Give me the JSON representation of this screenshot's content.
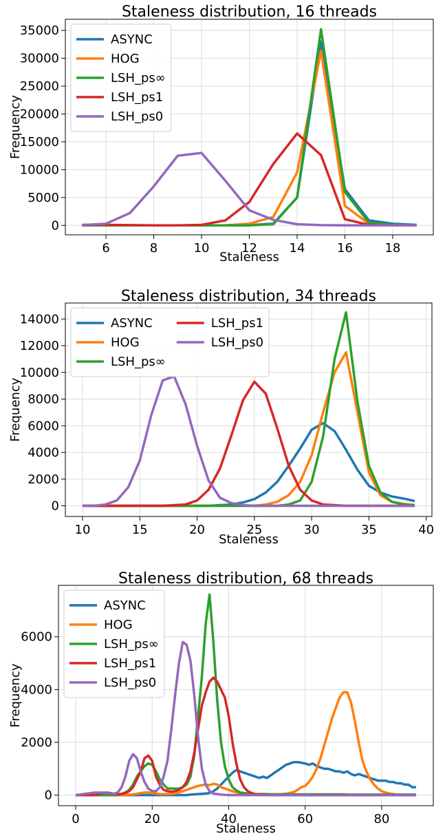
{
  "chart_data": [
    {
      "type": "line",
      "title": "Staleness distribution, 16 threads",
      "x_label": "Staleness",
      "y_label": "Frequency",
      "x": [
        5,
        6,
        7,
        8,
        9,
        10,
        11,
        12,
        13,
        14,
        15,
        16,
        17,
        18,
        19
      ],
      "series": [
        {
          "name": "ASYNC",
          "color": "#1f77b4",
          "values": [
            0,
            0,
            0,
            0,
            0,
            0,
            0,
            50,
            300,
            5000,
            33000,
            6500,
            900,
            300,
            100
          ]
        },
        {
          "name": "HOG",
          "color": "#ff7f0e",
          "values": [
            0,
            0,
            0,
            0,
            0,
            0,
            0,
            300,
            1500,
            9500,
            31300,
            3500,
            300,
            50,
            0
          ]
        },
        {
          "name": "LSH_ps∞",
          "color": "#2ca02c",
          "values": [
            0,
            0,
            0,
            0,
            0,
            0,
            0,
            0,
            200,
            5000,
            35200,
            6000,
            500,
            100,
            50
          ]
        },
        {
          "name": "LSH_ps1",
          "color": "#d62728",
          "values": [
            100,
            100,
            50,
            0,
            0,
            100,
            900,
            4200,
            11000,
            16500,
            12600,
            1100,
            100,
            0,
            0
          ]
        },
        {
          "name": "LSH_ps0",
          "color": "#9467bd",
          "values": [
            50,
            300,
            2200,
            7000,
            12500,
            13000,
            8000,
            2700,
            1000,
            200,
            50,
            0,
            0,
            0,
            0
          ]
        }
      ],
      "xlim": [
        4.3,
        19.7
      ],
      "ylim": [
        -1700,
        37000
      ],
      "xticks": [
        6,
        8,
        10,
        12,
        14,
        16,
        18
      ],
      "yticks": [
        0,
        5000,
        10000,
        15000,
        20000,
        25000,
        30000,
        35000
      ],
      "grid": true,
      "legend": "upper left",
      "legend_columns": 1
    },
    {
      "type": "line",
      "title": "Staleness distribution, 34 threads",
      "x_label": "Staleness",
      "y_label": "Frequency",
      "x": [
        10,
        11,
        12,
        13,
        14,
        15,
        16,
        17,
        18,
        19,
        20,
        21,
        22,
        23,
        24,
        25,
        26,
        27,
        28,
        29,
        30,
        31,
        32,
        33,
        34,
        35,
        36,
        37,
        38,
        39
      ],
      "series": [
        {
          "name": "ASYNC",
          "color": "#1f77b4",
          "values": [
            0,
            0,
            0,
            0,
            0,
            0,
            0,
            0,
            0,
            0,
            0,
            0,
            50,
            100,
            250,
            500,
            1000,
            1800,
            3000,
            4300,
            5700,
            6200,
            5600,
            4200,
            2700,
            1500,
            1000,
            700,
            550,
            350
          ]
        },
        {
          "name": "HOG",
          "color": "#ff7f0e",
          "values": [
            0,
            0,
            0,
            0,
            0,
            0,
            0,
            0,
            0,
            0,
            0,
            0,
            0,
            0,
            0,
            0,
            100,
            300,
            800,
            1800,
            3800,
            7000,
            10000,
            11500,
            7000,
            2500,
            800,
            300,
            150,
            50
          ]
        },
        {
          "name": "LSH_ps∞",
          "color": "#2ca02c",
          "values": [
            0,
            0,
            0,
            0,
            0,
            0,
            0,
            0,
            0,
            0,
            0,
            0,
            0,
            0,
            0,
            0,
            0,
            0,
            100,
            400,
            1800,
            5200,
            11000,
            14500,
            7800,
            3000,
            1000,
            300,
            100,
            50
          ]
        },
        {
          "name": "LSH_ps1",
          "color": "#d62728",
          "values": [
            0,
            0,
            0,
            0,
            0,
            0,
            0,
            0,
            50,
            100,
            400,
            1200,
            2800,
            5300,
            7900,
            9300,
            8400,
            5800,
            3000,
            1200,
            400,
            100,
            50,
            0,
            0,
            0,
            0,
            0,
            0,
            0
          ]
        },
        {
          "name": "LSH_ps0",
          "color": "#9467bd",
          "values": [
            0,
            0,
            100,
            400,
            1400,
            3400,
            6800,
            9400,
            9700,
            7600,
            4500,
            1900,
            600,
            200,
            50,
            0,
            0,
            0,
            0,
            0,
            0,
            0,
            0,
            0,
            0,
            0,
            0,
            0,
            0,
            0
          ]
        }
      ],
      "xlim": [
        8.5,
        40.5
      ],
      "ylim": [
        -800,
        15200
      ],
      "xticks": [
        10,
        15,
        20,
        25,
        30,
        35,
        40
      ],
      "yticks": [
        0,
        2000,
        4000,
        6000,
        8000,
        10000,
        12000,
        14000
      ],
      "grid": true,
      "legend": "upper left",
      "legend_columns": 2
    },
    {
      "type": "line",
      "title": "Staleness distribution, 68 threads",
      "x_label": "Staleness",
      "y_label": "Frequency",
      "x": [
        0,
        1,
        2,
        3,
        4,
        5,
        6,
        7,
        8,
        9,
        10,
        11,
        12,
        13,
        14,
        15,
        16,
        17,
        18,
        19,
        20,
        21,
        22,
        23,
        24,
        25,
        26,
        27,
        28,
        29,
        30,
        31,
        32,
        33,
        34,
        35,
        36,
        37,
        38,
        39,
        40,
        41,
        42,
        43,
        44,
        45,
        46,
        47,
        48,
        49,
        50,
        51,
        52,
        53,
        54,
        55,
        56,
        57,
        58,
        59,
        60,
        61,
        62,
        63,
        64,
        65,
        66,
        67,
        68,
        69,
        70,
        71,
        72,
        73,
        74,
        75,
        76,
        77,
        78,
        79,
        80,
        81,
        82,
        83,
        84,
        85,
        86,
        87,
        88,
        89
      ],
      "series": [
        {
          "name": "ASYNC",
          "color": "#1f77b4",
          "values": [
            0,
            0,
            0,
            0,
            0,
            0,
            0,
            0,
            0,
            0,
            0,
            0,
            0,
            0,
            0,
            0,
            0,
            0,
            0,
            0,
            0,
            0,
            0,
            0,
            0,
            0,
            0,
            0,
            0,
            0,
            20,
            30,
            40,
            50,
            60,
            80,
            150,
            250,
            400,
            550,
            700,
            850,
            950,
            900,
            850,
            800,
            750,
            700,
            650,
            700,
            650,
            750,
            850,
            950,
            1050,
            1150,
            1200,
            1250,
            1250,
            1230,
            1200,
            1150,
            1200,
            1100,
            1050,
            1000,
            1000,
            950,
            900,
            900,
            850,
            900,
            800,
            750,
            800,
            750,
            700,
            650,
            600,
            550,
            550,
            550,
            500,
            500,
            450,
            450,
            400,
            400,
            300,
            300
          ]
        },
        {
          "name": "HOG",
          "color": "#ff7f0e",
          "values": [
            0,
            0,
            0,
            0,
            0,
            0,
            0,
            0,
            0,
            0,
            0,
            0,
            0,
            10,
            20,
            30,
            50,
            80,
            100,
            100,
            80,
            60,
            40,
            40,
            40,
            50,
            60,
            100,
            150,
            200,
            250,
            300,
            350,
            380,
            400,
            380,
            430,
            400,
            300,
            250,
            200,
            150,
            100,
            80,
            60,
            50,
            40,
            30,
            30,
            30,
            30,
            30,
            30,
            30,
            40,
            50,
            80,
            120,
            200,
            300,
            350,
            500,
            700,
            1000,
            1400,
            1900,
            2400,
            2900,
            3300,
            3700,
            3900,
            3900,
            3500,
            2800,
            2000,
            1300,
            900,
            600,
            400,
            250,
            150,
            100,
            60,
            40,
            20,
            10,
            0,
            0,
            0,
            0
          ]
        },
        {
          "name": "LSH_ps∞",
          "color": "#2ca02c",
          "values": [
            0,
            0,
            0,
            0,
            0,
            0,
            0,
            0,
            0,
            0,
            0,
            20,
            50,
            100,
            200,
            400,
            700,
            900,
            1100,
            1200,
            1150,
            900,
            600,
            400,
            250,
            250,
            250,
            250,
            300,
            400,
            700,
            1500,
            3000,
            4500,
            6500,
            7600,
            5800,
            3600,
            2000,
            1100,
            600,
            300,
            180,
            100,
            80,
            60,
            50,
            40,
            40,
            40,
            40,
            30,
            30,
            30,
            30,
            30,
            30,
            30,
            30,
            30,
            30,
            30,
            30,
            30,
            30,
            30,
            30,
            30,
            30,
            30,
            30,
            20,
            20,
            20,
            20,
            20,
            20,
            20,
            20,
            20,
            20,
            20,
            20,
            20,
            20,
            20,
            20,
            20,
            20,
            20
          ]
        },
        {
          "name": "LSH_ps1",
          "color": "#d62728",
          "values": [
            0,
            0,
            0,
            0,
            0,
            0,
            50,
            80,
            100,
            80,
            50,
            30,
            40,
            80,
            150,
            300,
            600,
            900,
            1400,
            1500,
            1300,
            700,
            400,
            200,
            150,
            130,
            150,
            200,
            300,
            500,
            900,
            1600,
            2500,
            3400,
            3900,
            4300,
            4450,
            4300,
            4000,
            3700,
            3000,
            2000,
            1200,
            600,
            300,
            150,
            80,
            40,
            30,
            20,
            0,
            0,
            0,
            0,
            0,
            0,
            0,
            0,
            0,
            0,
            0,
            0,
            0,
            0,
            0,
            0,
            0,
            0,
            0,
            0,
            0,
            0,
            0,
            0,
            0,
            0,
            0,
            0,
            0,
            0,
            0,
            0,
            0,
            0,
            0,
            0,
            0,
            0,
            0,
            0
          ]
        },
        {
          "name": "LSH_ps0",
          "color": "#9467bd",
          "values": [
            0,
            20,
            40,
            60,
            80,
            100,
            100,
            100,
            80,
            60,
            50,
            100,
            300,
            700,
            1300,
            1550,
            1400,
            900,
            500,
            250,
            150,
            150,
            300,
            700,
            1300,
            2500,
            3800,
            5000,
            5800,
            5700,
            5100,
            3800,
            2200,
            1000,
            400,
            150,
            60,
            40,
            20,
            10,
            0,
            0,
            0,
            0,
            0,
            0,
            0,
            0,
            0,
            0,
            0,
            0,
            0,
            0,
            0,
            0,
            0,
            0,
            0,
            0,
            0,
            0,
            0,
            0,
            0,
            0,
            0,
            0,
            0,
            0,
            0,
            0,
            0,
            0,
            0,
            0,
            0,
            0,
            0,
            0,
            0,
            0,
            0,
            0,
            0,
            0,
            0,
            0,
            0,
            0
          ]
        }
      ],
      "xlim": [
        -4.5,
        93.5
      ],
      "ylim": [
        -400,
        7950
      ],
      "xticks": [
        0,
        20,
        40,
        60,
        80
      ],
      "yticks": [
        0,
        2000,
        4000,
        6000
      ],
      "grid": true,
      "legend": "upper left",
      "legend_columns": 1
    }
  ]
}
